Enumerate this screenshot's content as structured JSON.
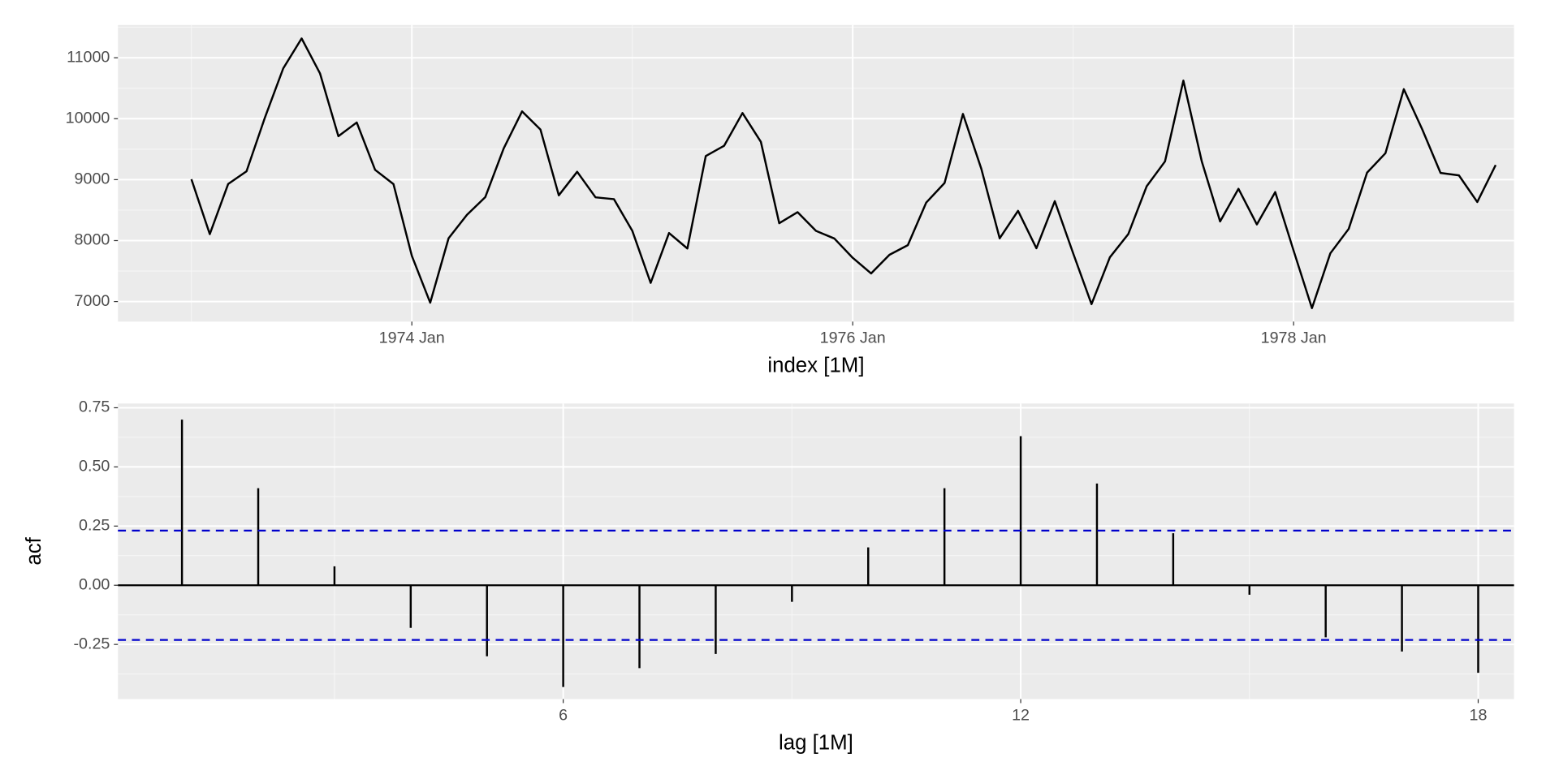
{
  "chart_data": [
    {
      "type": "line",
      "x": [
        "1973 Jan",
        "1973 Feb",
        "1973 Mar",
        "1973 Apr",
        "1973 May",
        "1973 Jun",
        "1973 Jul",
        "1973 Aug",
        "1973 Sep",
        "1973 Oct",
        "1973 Nov",
        "1973 Dec",
        "1974 Jan",
        "1974 Feb",
        "1974 Mar",
        "1974 Apr",
        "1974 May",
        "1974 Jun",
        "1974 Jul",
        "1974 Aug",
        "1974 Sep",
        "1974 Oct",
        "1974 Nov",
        "1974 Dec",
        "1975 Jan",
        "1975 Feb",
        "1975 Mar",
        "1975 Apr",
        "1975 May",
        "1975 Jun",
        "1975 Jul",
        "1975 Aug",
        "1975 Sep",
        "1975 Oct",
        "1975 Nov",
        "1975 Dec",
        "1976 Jan",
        "1976 Feb",
        "1976 Mar",
        "1976 Apr",
        "1976 May",
        "1976 Jun",
        "1976 Jul",
        "1976 Aug",
        "1976 Sep",
        "1976 Oct",
        "1976 Nov",
        "1976 Dec",
        "1977 Jan",
        "1977 Feb",
        "1977 Mar",
        "1977 Apr",
        "1977 May",
        "1977 Jun",
        "1977 Jul",
        "1977 Aug",
        "1977 Sep",
        "1977 Oct",
        "1977 Nov",
        "1977 Dec",
        "1978 Jan",
        "1978 Feb",
        "1978 Mar",
        "1978 Apr",
        "1978 May",
        "1978 Jun",
        "1978 Jul",
        "1978 Aug",
        "1978 Sep",
        "1978 Oct",
        "1978 Nov",
        "1978 Dec"
      ],
      "values": [
        9007,
        8106,
        8928,
        9137,
        10017,
        10826,
        11317,
        10744,
        9713,
        9938,
        9161,
        8927,
        7750,
        6981,
        8038,
        8422,
        8714,
        9512,
        10120,
        9823,
        8743,
        9129,
        8710,
        8680,
        8162,
        7306,
        8124,
        7870,
        9387,
        9556,
        10093,
        9620,
        8285,
        8466,
        8160,
        8034,
        7717,
        7461,
        7767,
        7925,
        8623,
        8945,
        10078,
        9179,
        8037,
        8488,
        7874,
        8647,
        7792,
        6957,
        7726,
        8106,
        8890,
        9299,
        10625,
        9302,
        8314,
        8850,
        8265,
        8796,
        7836,
        6892,
        7791,
        8192,
        9115,
        9434,
        10484,
        9827,
        9110,
        9070,
        8633,
        9240
      ],
      "color": "#000000",
      "xlabel": "index [1M]",
      "xlim": [
        "1972 Sep",
        "1979 Jan"
      ],
      "xticks": [
        "1974 Jan",
        "1976 Jan",
        "1978 Jan"
      ],
      "ylim": [
        6671,
        11538
      ],
      "yticks": [
        7000,
        8000,
        9000,
        10000,
        11000
      ],
      "grid": true
    },
    {
      "type": "acf",
      "x": [
        1,
        2,
        3,
        4,
        5,
        6,
        7,
        8,
        9,
        10,
        11,
        12,
        13,
        14,
        15,
        16,
        17,
        18
      ],
      "values": [
        0.7,
        0.41,
        0.08,
        -0.18,
        -0.3,
        -0.43,
        -0.35,
        -0.29,
        -0.07,
        0.16,
        0.41,
        0.63,
        0.43,
        0.22,
        -0.04,
        -0.22,
        -0.28,
        -0.37
      ],
      "color": "#000000",
      "ci": 0.231,
      "ci_color": "#0000cc",
      "xlabel": "lag [1M]",
      "ylabel": "acf",
      "xlim": [
        0.16,
        18.47
      ],
      "xticks": [
        6,
        12,
        18
      ],
      "ylim": [
        -0.481,
        0.768
      ],
      "yticks": [
        {
          "value": -0.25,
          "label": "-0.25"
        },
        {
          "value": 0,
          "label": "0.00"
        },
        0.25,
        {
          "value": 0.5,
          "label": "0.50"
        },
        0.75
      ],
      "grid": true
    }
  ]
}
